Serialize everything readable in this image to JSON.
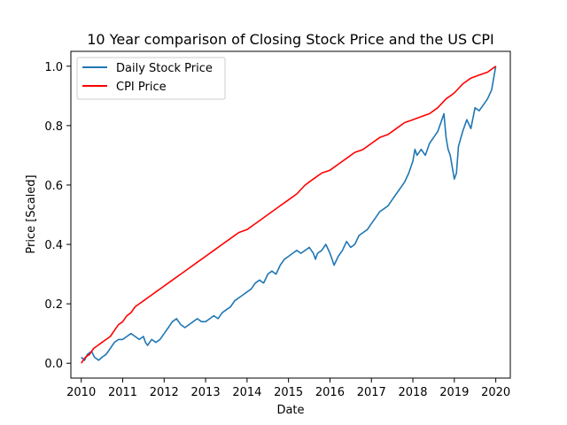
{
  "chart_data": {
    "type": "line",
    "title": "10 Year comparison of Closing Stock Price and the US CPI",
    "xlabel": "Date",
    "ylabel": "Price [Scaled]",
    "xlim": [
      2009.75,
      2020.35
    ],
    "ylim": [
      -0.05,
      1.05
    ],
    "x_ticks": [
      2010,
      2011,
      2012,
      2013,
      2014,
      2015,
      2016,
      2017,
      2018,
      2019,
      2020
    ],
    "x_tick_labels": [
      "2010",
      "2011",
      "2012",
      "2013",
      "2014",
      "2015",
      "2016",
      "2017",
      "2018",
      "2019",
      "2020"
    ],
    "y_ticks": [
      0.0,
      0.2,
      0.4,
      0.6,
      0.8,
      1.0
    ],
    "y_tick_labels": [
      "0.0",
      "0.2",
      "0.4",
      "0.6",
      "0.8",
      "1.0"
    ],
    "grid": false,
    "legend_position": "top-left",
    "series": [
      {
        "name": "Daily Stock Price",
        "color": "#1f77b4",
        "x": [
          2010.0,
          2010.08,
          2010.15,
          2010.25,
          2010.32,
          2010.42,
          2010.5,
          2010.6,
          2010.7,
          2010.8,
          2010.9,
          2011.0,
          2011.1,
          2011.2,
          2011.3,
          2011.4,
          2011.5,
          2011.55,
          2011.6,
          2011.65,
          2011.7,
          2011.8,
          2011.9,
          2012.0,
          2012.1,
          2012.2,
          2012.3,
          2012.4,
          2012.5,
          2012.6,
          2012.7,
          2012.8,
          2012.9,
          2013.0,
          2013.1,
          2013.2,
          2013.3,
          2013.4,
          2013.5,
          2013.6,
          2013.7,
          2013.8,
          2013.9,
          2014.0,
          2014.1,
          2014.2,
          2014.3,
          2014.4,
          2014.5,
          2014.6,
          2014.7,
          2014.8,
          2014.9,
          2015.0,
          2015.1,
          2015.2,
          2015.3,
          2015.4,
          2015.5,
          2015.6,
          2015.65,
          2015.7,
          2015.8,
          2015.9,
          2016.0,
          2016.05,
          2016.1,
          2016.2,
          2016.3,
          2016.4,
          2016.5,
          2016.6,
          2016.7,
          2016.8,
          2016.9,
          2017.0,
          2017.1,
          2017.2,
          2017.3,
          2017.4,
          2017.5,
          2017.6,
          2017.7,
          2017.8,
          2017.9,
          2018.0,
          2018.05,
          2018.1,
          2018.2,
          2018.3,
          2018.4,
          2018.5,
          2018.6,
          2018.7,
          2018.75,
          2018.8,
          2018.85,
          2018.9,
          2019.0,
          2019.05,
          2019.1,
          2019.2,
          2019.3,
          2019.4,
          2019.5,
          2019.6,
          2019.7,
          2019.8,
          2019.9,
          2020.0
        ],
        "y": [
          0.02,
          0.01,
          0.03,
          0.04,
          0.02,
          0.01,
          0.02,
          0.03,
          0.05,
          0.07,
          0.08,
          0.08,
          0.09,
          0.1,
          0.09,
          0.08,
          0.09,
          0.07,
          0.06,
          0.07,
          0.08,
          0.07,
          0.08,
          0.1,
          0.12,
          0.14,
          0.15,
          0.13,
          0.12,
          0.13,
          0.14,
          0.15,
          0.14,
          0.14,
          0.15,
          0.16,
          0.15,
          0.17,
          0.18,
          0.19,
          0.21,
          0.22,
          0.23,
          0.24,
          0.25,
          0.27,
          0.28,
          0.27,
          0.3,
          0.31,
          0.3,
          0.33,
          0.35,
          0.36,
          0.37,
          0.38,
          0.37,
          0.38,
          0.39,
          0.37,
          0.35,
          0.37,
          0.38,
          0.4,
          0.37,
          0.35,
          0.33,
          0.36,
          0.38,
          0.41,
          0.39,
          0.4,
          0.43,
          0.44,
          0.45,
          0.47,
          0.49,
          0.51,
          0.52,
          0.53,
          0.55,
          0.57,
          0.59,
          0.61,
          0.64,
          0.68,
          0.72,
          0.7,
          0.72,
          0.7,
          0.74,
          0.76,
          0.78,
          0.82,
          0.84,
          0.76,
          0.72,
          0.7,
          0.62,
          0.64,
          0.73,
          0.78,
          0.82,
          0.79,
          0.86,
          0.85,
          0.87,
          0.89,
          0.92,
          1.0
        ]
      },
      {
        "name": "CPI Price",
        "color": "#ff0000",
        "x": [
          2010.0,
          2010.1,
          2010.2,
          2010.3,
          2010.4,
          2010.5,
          2010.6,
          2010.7,
          2010.8,
          2010.9,
          2011.0,
          2011.1,
          2011.2,
          2011.3,
          2011.4,
          2011.5,
          2011.6,
          2011.7,
          2011.8,
          2011.9,
          2012.0,
          2012.2,
          2012.4,
          2012.6,
          2012.8,
          2013.0,
          2013.2,
          2013.4,
          2013.6,
          2013.8,
          2014.0,
          2014.2,
          2014.4,
          2014.6,
          2014.8,
          2015.0,
          2015.2,
          2015.4,
          2015.6,
          2015.8,
          2016.0,
          2016.2,
          2016.4,
          2016.6,
          2016.8,
          2017.0,
          2017.2,
          2017.4,
          2017.6,
          2017.8,
          2018.0,
          2018.2,
          2018.4,
          2018.6,
          2018.8,
          2019.0,
          2019.2,
          2019.4,
          2019.6,
          2019.8,
          2020.0
        ],
        "y": [
          0.0,
          0.02,
          0.03,
          0.05,
          0.06,
          0.07,
          0.08,
          0.09,
          0.11,
          0.13,
          0.14,
          0.16,
          0.17,
          0.19,
          0.2,
          0.21,
          0.22,
          0.23,
          0.24,
          0.25,
          0.26,
          0.28,
          0.3,
          0.32,
          0.34,
          0.36,
          0.38,
          0.4,
          0.42,
          0.44,
          0.45,
          0.47,
          0.49,
          0.51,
          0.53,
          0.55,
          0.57,
          0.6,
          0.62,
          0.64,
          0.65,
          0.67,
          0.69,
          0.71,
          0.72,
          0.74,
          0.76,
          0.77,
          0.79,
          0.81,
          0.82,
          0.83,
          0.84,
          0.86,
          0.89,
          0.91,
          0.94,
          0.96,
          0.97,
          0.98,
          1.0
        ]
      }
    ]
  }
}
